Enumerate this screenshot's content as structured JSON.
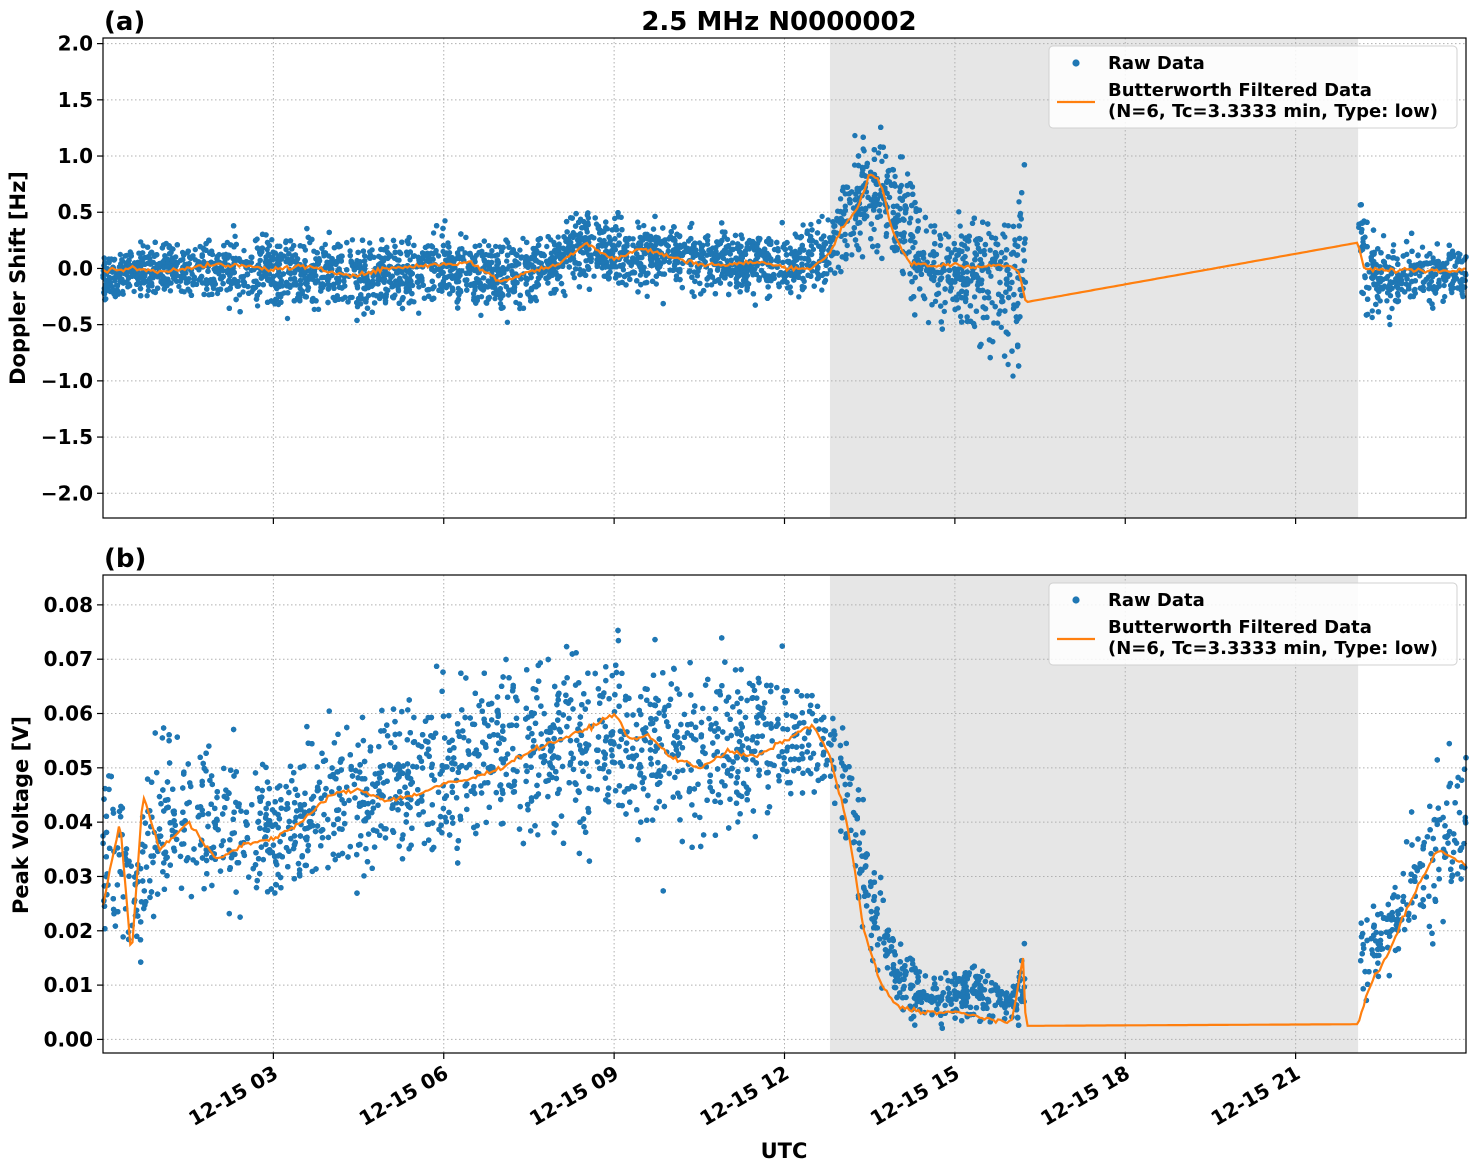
{
  "colors": {
    "raw": "#1f77b4",
    "filtered": "#ff7f0e",
    "shade": "#e6e6e6"
  },
  "chart_data": {
    "type": "scatter",
    "title": "2.5 MHz N0000002",
    "xlabel": "UTC",
    "x_axis": {
      "unit": "hours UTC on 2023-12-15",
      "range_hours": [
        0.0,
        24.0
      ],
      "tick_hours": [
        3,
        6,
        9,
        12,
        15,
        18,
        21
      ],
      "tick_labels": [
        "12-15 03",
        "12-15 06",
        "12-15 09",
        "12-15 12",
        "12-15 15",
        "12-15 18",
        "12-15 21"
      ]
    },
    "shaded_interval_hours": [
      12.8,
      22.1
    ],
    "grid": true,
    "legend": {
      "placement": "top-right",
      "entries": [
        "Raw Data",
        "Butterworth Filtered Data",
        "(N=6, Tc=3.3333 min, Type: low)"
      ]
    },
    "panels": [
      {
        "label": "(a)",
        "ylabel": "Doppler Shift [Hz]",
        "ylim": [
          -2.22,
          2.05
        ],
        "y_ticks": [
          2.0,
          1.5,
          1.0,
          0.5,
          0.0,
          -0.5,
          -1.0,
          -1.5,
          -2.0
        ],
        "y_tick_labels": [
          "2.0",
          "1.5",
          "1.0",
          "0.5",
          "0.0",
          "−0.5",
          "−1.0",
          "−1.5",
          "−2.0"
        ],
        "filtered_series": {
          "name": "Butterworth Filtered Data",
          "x_hours": [
            0.0,
            0.5,
            1.0,
            1.5,
            2.0,
            2.5,
            3.0,
            3.5,
            4.0,
            4.5,
            5.0,
            5.5,
            6.0,
            6.5,
            7.0,
            7.5,
            8.0,
            8.5,
            9.0,
            9.5,
            10.0,
            10.5,
            11.0,
            11.5,
            12.0,
            12.5,
            12.8,
            13.0,
            13.3,
            13.5,
            13.7,
            13.9,
            14.2,
            14.6,
            15.0,
            15.4,
            15.8,
            16.1,
            16.25,
            22.1,
            22.2,
            22.6,
            23.0,
            23.5,
            24.0
          ],
          "values": [
            -0.02,
            0.0,
            -0.03,
            0.01,
            0.03,
            0.02,
            -0.01,
            0.02,
            -0.03,
            -0.06,
            0.0,
            0.02,
            0.04,
            0.05,
            -0.12,
            -0.03,
            0.03,
            0.23,
            0.08,
            0.18,
            0.1,
            0.04,
            0.03,
            0.06,
            0.01,
            0.0,
            0.14,
            0.35,
            0.55,
            0.85,
            0.75,
            0.32,
            0.05,
            0.02,
            0.04,
            0.01,
            0.03,
            0.0,
            -0.3,
            0.23,
            0.0,
            -0.02,
            -0.01,
            -0.02,
            0.0
          ]
        },
        "raw_envelope": {
          "name": "Raw Data",
          "x_hours": [
            0.0,
            1.0,
            2.0,
            3.0,
            4.0,
            5.0,
            6.0,
            7.0,
            8.0,
            8.5,
            9.0,
            10.0,
            11.0,
            12.0,
            12.8,
            13.3,
            13.7,
            14.0,
            14.5,
            15.0,
            15.5,
            16.0,
            16.25,
            22.1,
            22.4,
            23.0,
            24.0
          ],
          "upper": [
            0.2,
            0.3,
            0.35,
            0.45,
            0.35,
            0.35,
            0.4,
            0.35,
            0.4,
            0.7,
            0.55,
            0.5,
            0.4,
            0.4,
            0.6,
            1.3,
            1.4,
            1.2,
            0.6,
            0.5,
            0.6,
            1.0,
            1.2,
            0.9,
            0.5,
            0.3,
            0.25
          ],
          "lower": [
            -0.35,
            -0.3,
            -0.4,
            -0.5,
            -0.45,
            -0.5,
            -0.35,
            -0.55,
            -0.3,
            -0.15,
            -0.3,
            -0.25,
            -0.3,
            -0.35,
            -0.3,
            -0.1,
            -0.05,
            -0.2,
            -0.6,
            -0.5,
            -0.9,
            -1.2,
            -0.7,
            -0.5,
            -0.6,
            -0.45,
            -0.35
          ]
        }
      },
      {
        "label": "(b)",
        "ylabel": "Peak Voltage [V]",
        "ylim": [
          -0.0025,
          0.0855
        ],
        "y_ticks": [
          0.0,
          0.01,
          0.02,
          0.03,
          0.04,
          0.05,
          0.06,
          0.07,
          0.08
        ],
        "y_tick_labels": [
          "0.00",
          "0.01",
          "0.02",
          "0.03",
          "0.04",
          "0.05",
          "0.06",
          "0.07",
          "0.08"
        ],
        "filtered_series": {
          "name": "Butterworth Filtered Data",
          "x_hours": [
            0.0,
            0.3,
            0.5,
            0.7,
            1.0,
            1.5,
            2.0,
            2.5,
            3.0,
            3.5,
            4.0,
            4.5,
            5.0,
            5.5,
            6.0,
            6.5,
            7.0,
            7.5,
            8.0,
            8.5,
            9.0,
            9.3,
            9.6,
            10.0,
            10.5,
            11.0,
            11.5,
            12.0,
            12.5,
            12.8,
            13.1,
            13.4,
            13.7,
            14.0,
            14.5,
            15.0,
            15.5,
            16.0,
            16.2,
            16.25,
            22.1,
            22.3,
            22.6,
            23.0,
            23.5,
            24.0
          ],
          "values": [
            0.025,
            0.04,
            0.015,
            0.045,
            0.035,
            0.04,
            0.033,
            0.036,
            0.037,
            0.04,
            0.045,
            0.046,
            0.044,
            0.045,
            0.047,
            0.048,
            0.05,
            0.053,
            0.055,
            0.057,
            0.06,
            0.055,
            0.056,
            0.052,
            0.05,
            0.053,
            0.052,
            0.055,
            0.058,
            0.052,
            0.04,
            0.02,
            0.01,
            0.006,
            0.005,
            0.005,
            0.004,
            0.003,
            0.015,
            0.0025,
            0.0028,
            0.01,
            0.015,
            0.025,
            0.035,
            0.032
          ]
        },
        "raw_envelope": {
          "name": "Raw Data",
          "x_hours": [
            0.0,
            0.3,
            0.5,
            1.0,
            2.0,
            3.0,
            4.0,
            5.0,
            6.0,
            7.0,
            8.0,
            9.0,
            10.0,
            11.0,
            12.0,
            12.8,
            13.2,
            13.5,
            14.0,
            14.5,
            15.0,
            16.0,
            16.25,
            22.1,
            22.5,
            23.0,
            23.5,
            24.0
          ],
          "upper": [
            0.058,
            0.06,
            0.04,
            0.065,
            0.058,
            0.055,
            0.062,
            0.065,
            0.07,
            0.075,
            0.077,
            0.078,
            0.076,
            0.074,
            0.072,
            0.068,
            0.06,
            0.04,
            0.02,
            0.013,
            0.016,
            0.012,
            0.021,
            0.025,
            0.03,
            0.04,
            0.055,
            0.063
          ],
          "lower": [
            0.015,
            0.013,
            0.005,
            0.018,
            0.02,
            0.02,
            0.025,
            0.028,
            0.03,
            0.03,
            0.032,
            0.035,
            0.03,
            0.035,
            0.04,
            0.04,
            0.025,
            0.01,
            0.003,
            0.002,
            0.002,
            0.002,
            0.002,
            0.003,
            0.008,
            0.012,
            0.015,
            0.018
          ]
        }
      }
    ]
  }
}
